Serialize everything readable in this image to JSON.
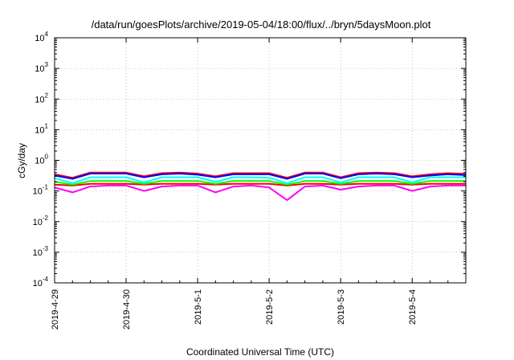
{
  "chart_data": {
    "type": "line",
    "title": "/data/run/goesPlots/archive/2019-05-04/18:00/flux/../bryn/5daysMoon.plot",
    "xlabel": "Coordinated Universal Time (UTC)",
    "ylabel": "cGy/day",
    "yscale": "log",
    "ylim": [
      0.0001,
      10000
    ],
    "xlim": [
      "2019-04-29T00:00",
      "2019-05-04T18:00"
    ],
    "grid": true,
    "x_ticks": [
      "2019-4-29",
      "2019-4-30",
      "2019-5-1",
      "2019-5-2",
      "2019-5-3",
      "2019-5-4"
    ],
    "y_ticks": [
      {
        "base": "10",
        "exp": "-4"
      },
      {
        "base": "10",
        "exp": "-3"
      },
      {
        "base": "10",
        "exp": "-2"
      },
      {
        "base": "10",
        "exp": "-1"
      },
      {
        "base": "10",
        "exp": "0"
      },
      {
        "base": "10",
        "exp": "1"
      },
      {
        "base": "10",
        "exp": "2"
      },
      {
        "base": "10",
        "exp": "3"
      },
      {
        "base": "10",
        "exp": "4"
      }
    ],
    "x_hours": [
      0,
      6,
      12,
      18,
      24,
      30,
      36,
      42,
      48,
      54,
      60,
      66,
      72,
      78,
      84,
      90,
      96,
      102,
      108,
      114,
      120,
      126,
      132,
      138
    ],
    "series": [
      {
        "color": "#ff00ff",
        "values": [
          0.13,
          0.09,
          0.14,
          0.15,
          0.15,
          0.1,
          0.14,
          0.15,
          0.15,
          0.09,
          0.14,
          0.15,
          0.13,
          0.05,
          0.14,
          0.15,
          0.11,
          0.14,
          0.15,
          0.15,
          0.1,
          0.14,
          0.15,
          0.15
        ]
      },
      {
        "color": "#ff0000",
        "values": [
          0.16,
          0.15,
          0.17,
          0.17,
          0.17,
          0.16,
          0.17,
          0.17,
          0.17,
          0.16,
          0.17,
          0.17,
          0.17,
          0.15,
          0.17,
          0.17,
          0.16,
          0.17,
          0.17,
          0.17,
          0.16,
          0.17,
          0.17,
          0.17
        ]
      },
      {
        "color": "#00ff00",
        "values": [
          0.2,
          0.16,
          0.21,
          0.21,
          0.21,
          0.17,
          0.21,
          0.21,
          0.21,
          0.17,
          0.21,
          0.21,
          0.21,
          0.16,
          0.21,
          0.21,
          0.17,
          0.21,
          0.21,
          0.21,
          0.17,
          0.21,
          0.21,
          0.21
        ]
      },
      {
        "color": "#00ffff",
        "values": [
          0.26,
          0.18,
          0.28,
          0.28,
          0.28,
          0.19,
          0.28,
          0.28,
          0.28,
          0.2,
          0.28,
          0.28,
          0.27,
          0.18,
          0.28,
          0.28,
          0.19,
          0.28,
          0.28,
          0.28,
          0.19,
          0.28,
          0.28,
          0.28
        ]
      },
      {
        "color": "#ff0000",
        "values": [
          0.35,
          0.27,
          0.4,
          0.4,
          0.4,
          0.3,
          0.38,
          0.4,
          0.37,
          0.3,
          0.38,
          0.38,
          0.38,
          0.27,
          0.4,
          0.4,
          0.28,
          0.38,
          0.4,
          0.38,
          0.3,
          0.35,
          0.38,
          0.36
        ]
      },
      {
        "color": "#0000ff",
        "values": [
          0.32,
          0.25,
          0.37,
          0.37,
          0.37,
          0.28,
          0.35,
          0.37,
          0.34,
          0.28,
          0.35,
          0.35,
          0.35,
          0.25,
          0.37,
          0.37,
          0.26,
          0.35,
          0.37,
          0.35,
          0.28,
          0.32,
          0.35,
          0.33
        ]
      }
    ]
  }
}
